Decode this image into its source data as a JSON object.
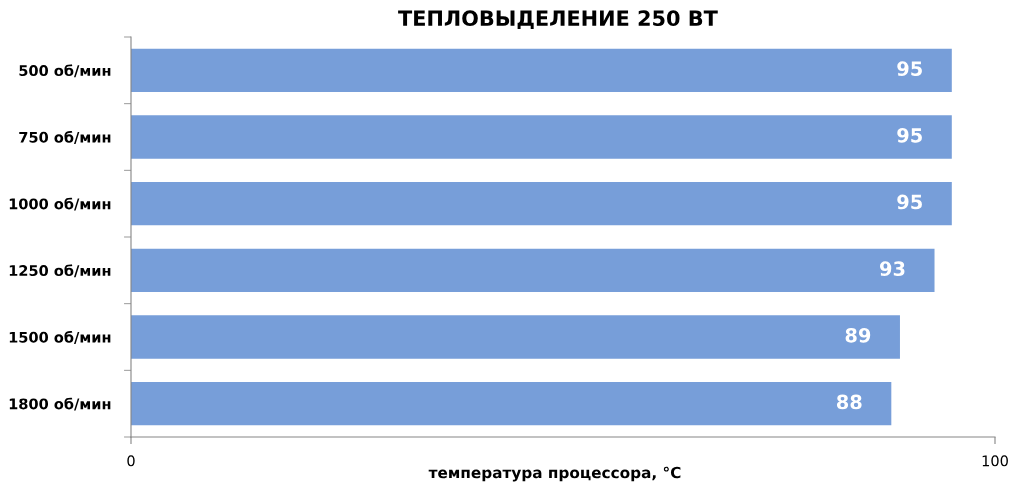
{
  "chart_data": {
    "type": "bar",
    "orientation": "horizontal",
    "title": "ТЕПЛОВЫДЕЛЕНИЕ 250 ВТ",
    "xlabel": "температура процессора, °C",
    "categories": [
      "500 об/мин",
      "750 об/мин",
      "1000 об/мин",
      "1250 об/мин",
      "1500 об/мин",
      "1800 об/мин"
    ],
    "values": [
      95,
      95,
      95,
      93,
      89,
      88
    ],
    "color": "#779ed9",
    "xlim": [
      0,
      100
    ],
    "xticks": [
      0,
      100
    ],
    "grid": false,
    "data_labels": true,
    "legend": false
  }
}
